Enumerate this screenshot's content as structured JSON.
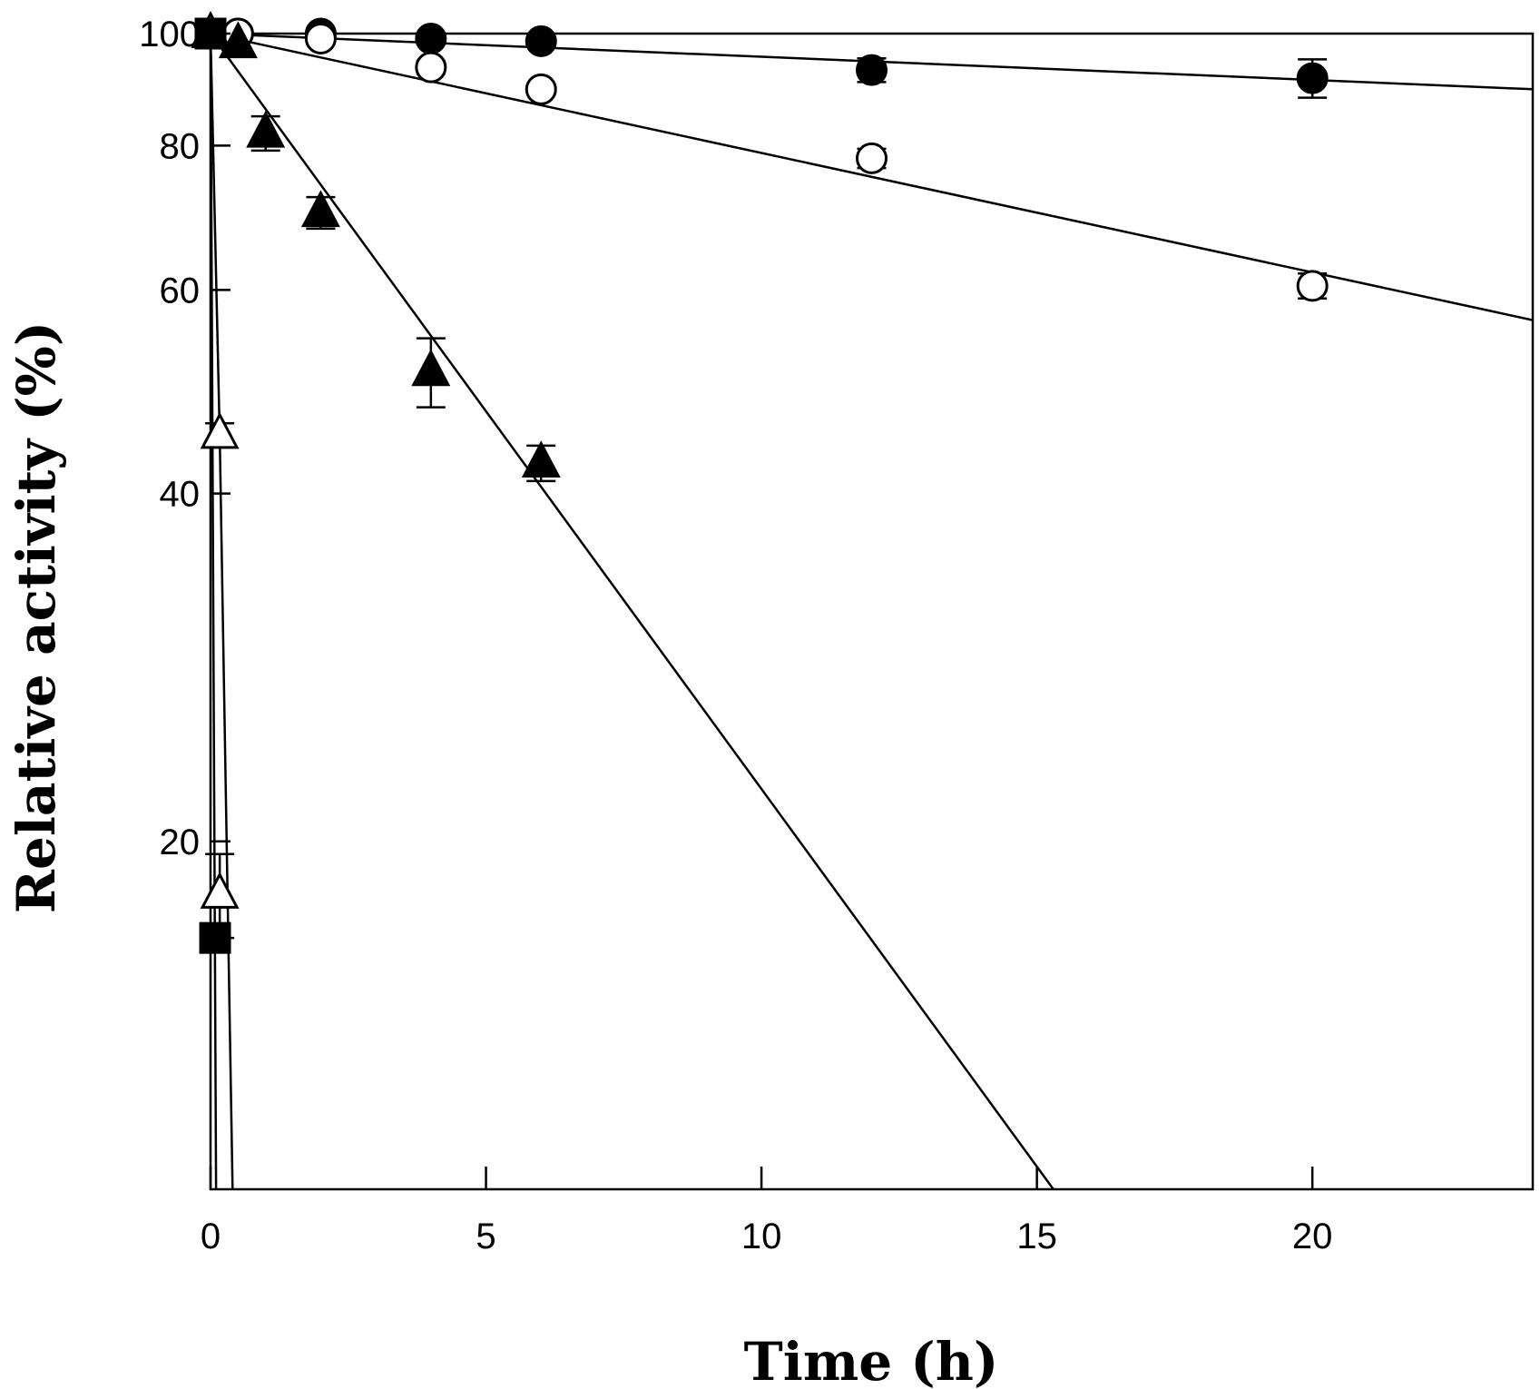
{
  "chart_data": {
    "type": "scatter",
    "title": "",
    "xlabel": "Time (h)",
    "ylabel": "Relative activity (%)",
    "yscale": "log",
    "xlim": [
      0,
      24
    ],
    "ylim": [
      10,
      100
    ],
    "xticks": [
      0,
      5,
      10,
      15,
      20
    ],
    "yticks": [
      20,
      40,
      60,
      80,
      100
    ],
    "xtick_labels": [
      "0",
      "5",
      "10",
      "15",
      "20"
    ],
    "ytick_labels": [
      "20",
      "40",
      "60",
      "80",
      "100"
    ],
    "series": [
      {
        "name": "filled circles",
        "marker": "circle",
        "filled": true,
        "x": [
          0,
          0.5,
          2,
          4,
          6,
          12,
          20
        ],
        "y": [
          100,
          100,
          100,
          99,
          98.5,
          93,
          91.5
        ],
        "err": [
          0,
          0,
          0,
          0.8,
          0.8,
          2.2,
          3.5
        ],
        "fit": [
          [
            0,
            100
          ],
          [
            24,
            89.5
          ]
        ]
      },
      {
        "name": "open circles",
        "marker": "circle",
        "filled": false,
        "x": [
          0,
          0.5,
          2,
          4,
          6,
          12,
          20
        ],
        "y": [
          100,
          100,
          99,
          93.5,
          89.5,
          78,
          60.5
        ],
        "err": [
          0,
          0,
          0,
          1.2,
          0.8,
          1.5,
          1.5
        ],
        "fit": [
          [
            0,
            100
          ],
          [
            24,
            56.5
          ]
        ]
      },
      {
        "name": "filled triangles",
        "marker": "triangle",
        "filled": true,
        "x": [
          0,
          0.5,
          1,
          2,
          4,
          6
        ],
        "y": [
          100,
          98,
          82,
          70,
          51,
          42.5
        ],
        "err": [
          0,
          0,
          2.8,
          2.2,
          3.5,
          1.5
        ],
        "fit": [
          [
            0,
            100
          ],
          [
            15.3,
            10
          ]
        ]
      },
      {
        "name": "open triangles",
        "marker": "triangle",
        "filled": false,
        "x": [
          0,
          0.167,
          0.167
        ],
        "y": [
          100,
          45,
          18
        ],
        "err": [
          0,
          1,
          1.5
        ],
        "fit": [
          [
            0,
            100
          ],
          [
            0.167,
            45
          ],
          [
            0.4,
            10
          ]
        ]
      },
      {
        "name": "filled squares",
        "marker": "square",
        "filled": true,
        "x": [
          0,
          0.083
        ],
        "y": [
          100,
          16.5
        ],
        "err": [
          0,
          0
        ],
        "fit": [
          [
            0,
            100
          ],
          [
            0.1,
            10
          ]
        ]
      }
    ],
    "grid": false,
    "legend": "none"
  }
}
